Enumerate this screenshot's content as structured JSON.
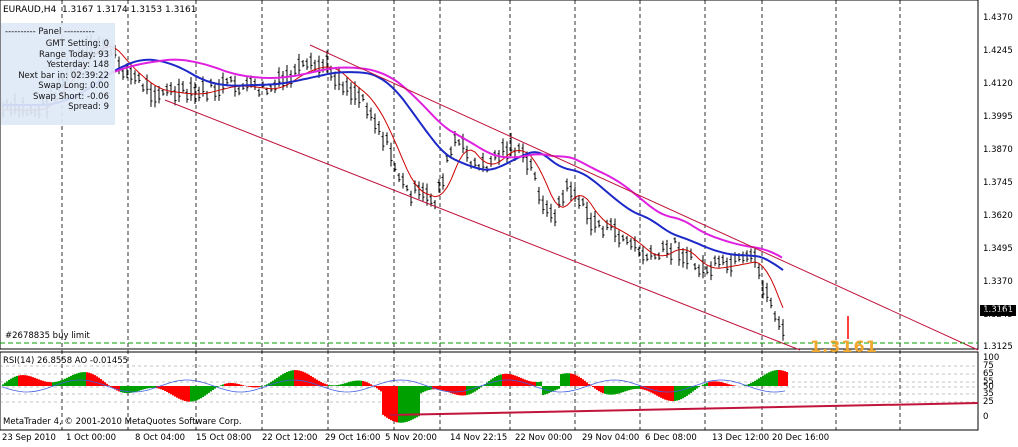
{
  "header": {
    "symbol": "EURAUD,H4",
    "ohlc": "1.3167 1.3174 1.3153 1.3161"
  },
  "panel": {
    "title": "---------- Panel ----------",
    "rows": [
      {
        "label": "GMT Setting:",
        "value": "0"
      },
      {
        "label": "Range Today:",
        "value": "93"
      },
      {
        "label": "Yesterday:",
        "value": "148"
      },
      {
        "label": "Next bar in:",
        "value": "02:39:22"
      },
      {
        "label": "Swap Long:",
        "value": "0.00"
      },
      {
        "label": "Swap Short:",
        "value": "-0.06"
      },
      {
        "label": "Spread:",
        "value": "9"
      }
    ]
  },
  "price_axis": [
    "1.4370",
    "1.4245",
    "1.4120",
    "1.3995",
    "1.3870",
    "1.3745",
    "1.3620",
    "1.3495",
    "1.3370",
    "1.3245",
    "1.3161",
    "1.3125"
  ],
  "current_price": "1.3161",
  "big_price": "1.3161",
  "order_label": "#2678835 buy limit",
  "indicator_header": "RSI(14) 26.8558  AO  -0.01455",
  "indicator_axis": [
    "100",
    "75",
    "65",
    "55",
    "50",
    "35",
    "25",
    "0"
  ],
  "copyright": "MetaTrader 4, © 2001-2010 MetaQuotes Software Corp.",
  "date_axis": [
    "23 Sep 2010",
    "1 Oct 00:00",
    "8 Oct 04:00",
    "15 Oct 08:00",
    "22 Oct 12:00",
    "29 Oct 16:00",
    "5 Nov 20:00",
    "14 Nov 22:15",
    "22 Nov 00:00",
    "29 Nov 04:00",
    "6 Dec 08:00",
    "13 Dec 12:00",
    "20 Dec 16:00"
  ],
  "colors": {
    "up": "#00a000",
    "down": "#ff0000",
    "ma_fast": "#cc0000",
    "ma_mid": "#1c28c8",
    "ma_slow": "#e020e0",
    "channel": "#c0143c",
    "order_line": "#00a000",
    "current_box": "#000000",
    "big_price": "#f0a830"
  }
}
